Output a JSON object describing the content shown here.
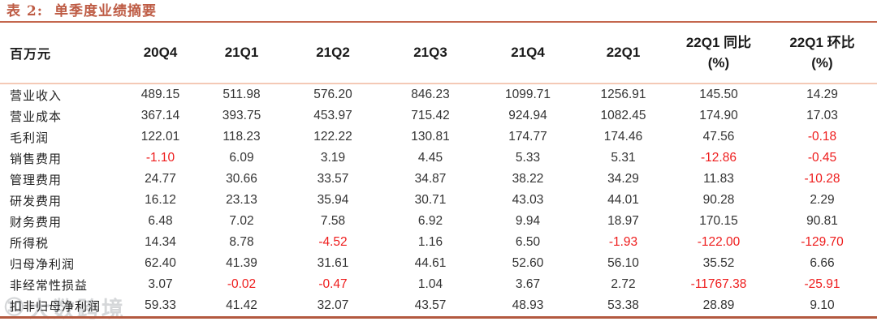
{
  "title": {
    "prefix": "表 2:",
    "text": "单季度业绩摘要"
  },
  "colors": {
    "accent_terracotta": "#BE5C45",
    "rule_light_salmon": "#F4C9B6",
    "rule_bottom": "#B3593F",
    "negative_red": "#EE1C1C",
    "body_text": "#333333"
  },
  "table": {
    "unit_header": "百万元",
    "quarter_columns": [
      "20Q4",
      "21Q1",
      "21Q2",
      "21Q3",
      "21Q4",
      "22Q1"
    ],
    "pct_columns": [
      {
        "line1": "22Q1 同比",
        "line2": "(%)"
      },
      {
        "line1": "22Q1 环比",
        "line2": "(%)"
      }
    ],
    "rows": [
      {
        "label": "营业收入",
        "values": [
          "489.15",
          "511.98",
          "576.20",
          "846.23",
          "1099.71",
          "1256.91",
          "145.50",
          "14.29"
        ]
      },
      {
        "label": "营业成本",
        "values": [
          "367.14",
          "393.75",
          "453.97",
          "715.42",
          "924.94",
          "1082.45",
          "174.90",
          "17.03"
        ]
      },
      {
        "label": "毛利润",
        "values": [
          "122.01",
          "118.23",
          "122.22",
          "130.81",
          "174.77",
          "174.46",
          "47.56",
          "-0.18"
        ]
      },
      {
        "label": "销售费用",
        "values": [
          "-1.10",
          "6.09",
          "3.19",
          "4.45",
          "5.33",
          "5.31",
          "-12.86",
          "-0.45"
        ]
      },
      {
        "label": "管理费用",
        "values": [
          "24.77",
          "30.66",
          "33.57",
          "34.87",
          "38.22",
          "34.29",
          "11.83",
          "-10.28"
        ]
      },
      {
        "label": "研发费用",
        "values": [
          "16.12",
          "23.13",
          "35.94",
          "30.71",
          "43.03",
          "44.01",
          "90.28",
          "2.29"
        ]
      },
      {
        "label": "财务费用",
        "values": [
          "6.48",
          "7.02",
          "7.58",
          "6.92",
          "9.94",
          "18.97",
          "170.15",
          "90.81"
        ]
      },
      {
        "label": "所得税",
        "values": [
          "14.34",
          "8.78",
          "-4.52",
          "1.16",
          "6.50",
          "-1.93",
          "-122.00",
          "-129.70"
        ]
      },
      {
        "label": "归母净利润",
        "values": [
          "62.40",
          "41.39",
          "31.61",
          "44.61",
          "52.60",
          "56.10",
          "35.52",
          "6.66"
        ]
      },
      {
        "label": "非经常性损益",
        "values": [
          "3.07",
          "-0.02",
          "-0.47",
          "1.04",
          "3.67",
          "2.72",
          "-11767.38",
          "-25.91"
        ]
      },
      {
        "label": "扣非归母净利润",
        "values": [
          "59.33",
          "41.42",
          "32.07",
          "43.57",
          "48.93",
          "53.38",
          "28.89",
          "9.10"
        ]
      }
    ]
  },
  "watermark": {
    "logo": "⑩",
    "text": "大数跨境"
  }
}
